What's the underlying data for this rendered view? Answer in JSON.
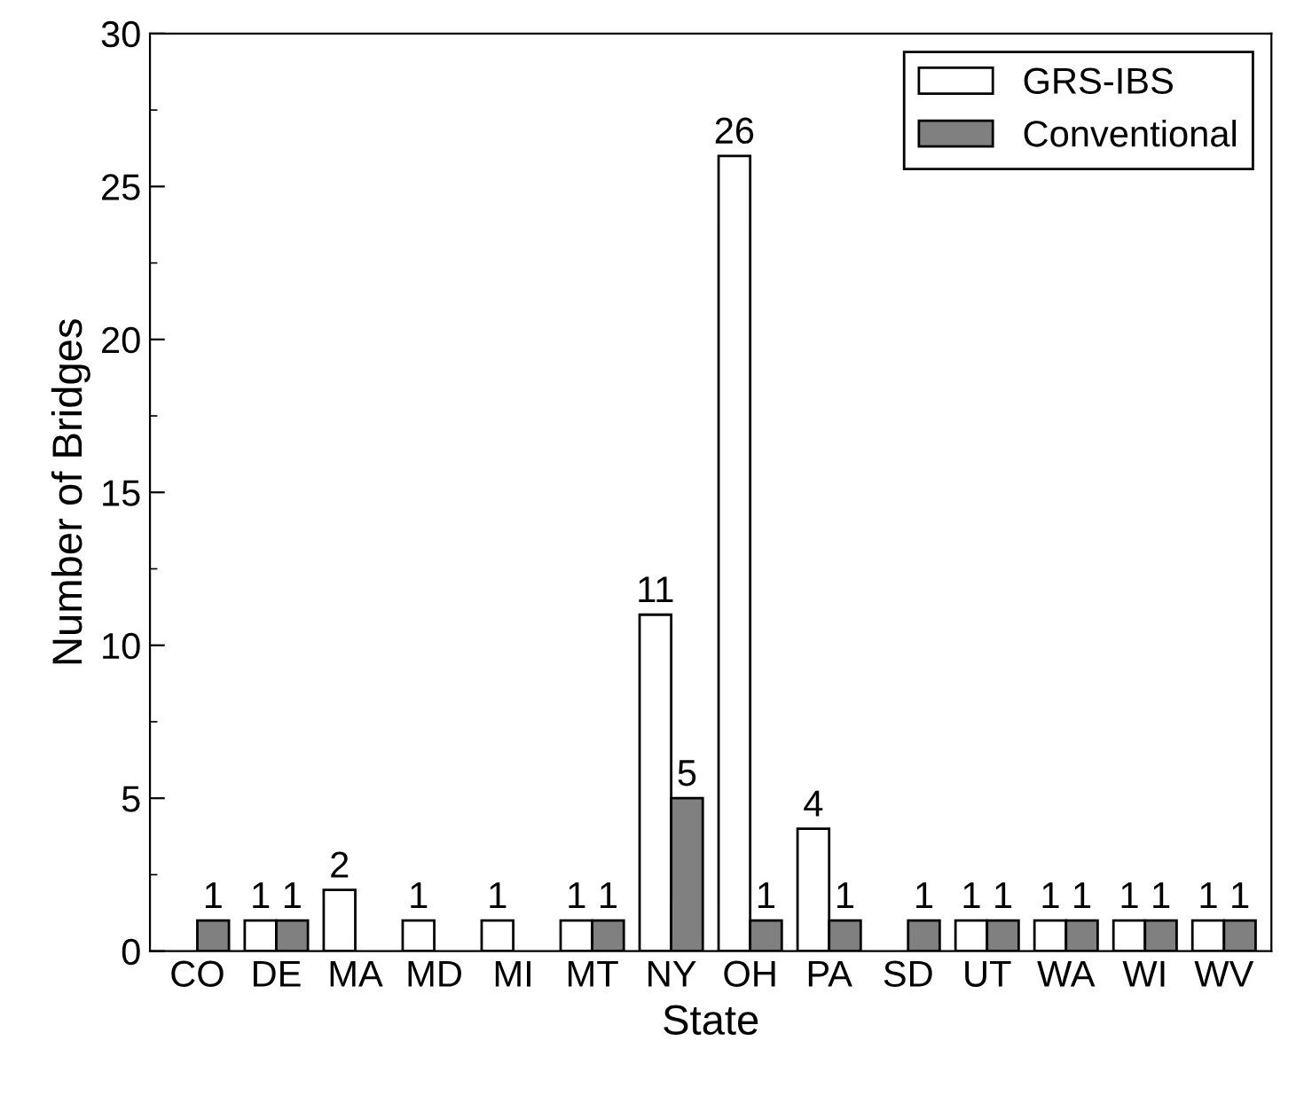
{
  "chart_data": {
    "type": "bar",
    "xlabel": "State",
    "ylabel": "Number of Bridges",
    "categories": [
      "CO",
      "DE",
      "MA",
      "MD",
      "MI",
      "MT",
      "NY",
      "OH",
      "PA",
      "SD",
      "UT",
      "WA",
      "WI",
      "WV"
    ],
    "series": [
      {
        "name": "GRS-IBS",
        "color": "#ffffff",
        "values": [
          null,
          1,
          2,
          1,
          1,
          1,
          11,
          26,
          4,
          null,
          1,
          1,
          1,
          1
        ]
      },
      {
        "name": "Conventional",
        "color": "#808080",
        "values": [
          1,
          1,
          null,
          null,
          null,
          1,
          5,
          1,
          1,
          1,
          1,
          1,
          1,
          1
        ]
      }
    ],
    "ylim": [
      0,
      30
    ],
    "yticks": [
      0,
      5,
      10,
      15,
      20,
      25,
      30
    ],
    "data_labels": true,
    "grid": false,
    "legend": "top right"
  }
}
